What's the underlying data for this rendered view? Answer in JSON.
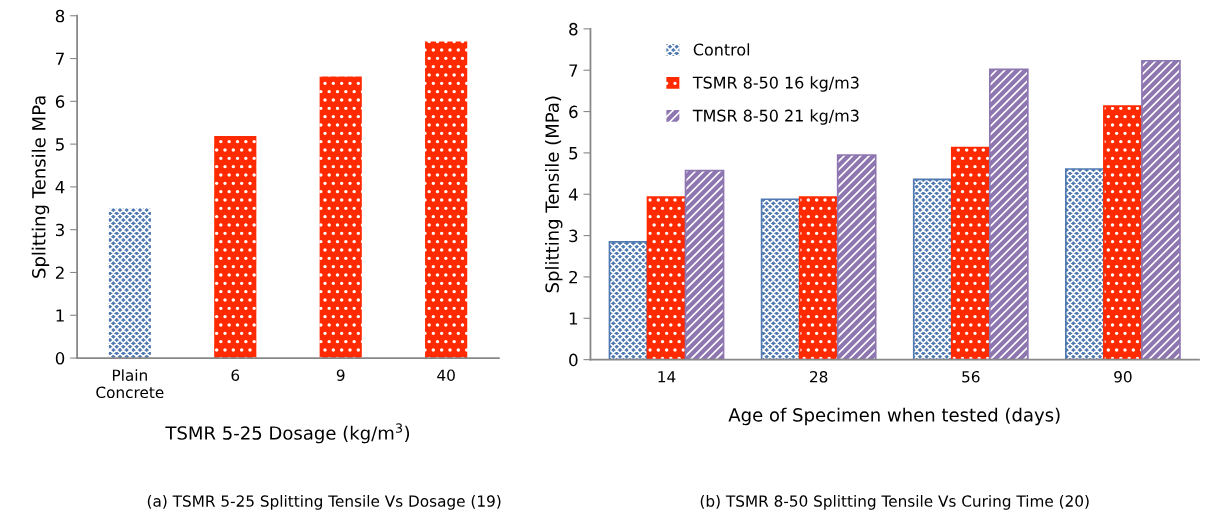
{
  "chart_data": [
    {
      "type": "bar",
      "xlabel": "TSMR 5-25 Dosage (kg/m$^{3}$)",
      "ylabel": "Splitting Tensile MPa",
      "categories": [
        "Plain\nConcrete",
        "6",
        "9",
        "40"
      ],
      "values": [
        3.5,
        5.19,
        6.58,
        7.4
      ],
      "colors": [
        "#4f79b0",
        "#ff2a00",
        "#ff2a00",
        "#ff2a00"
      ],
      "ylim": [
        0,
        8
      ],
      "yticks": [
        0,
        1,
        2,
        3,
        4,
        5,
        6,
        7,
        8
      ],
      "grid": false,
      "legend": false,
      "annotations": [
        "(a) TSMR 5-25 Splitting Tensile Vs Dosage (19)"
      ]
    },
    {
      "type": "bar",
      "xlabel": "Age of Specimen when tested (days)",
      "ylabel": "Splitting Tensile (MPa)",
      "categories": [
        "14",
        "28",
        "56",
        "90"
      ],
      "series": [
        {
          "name": "Control",
          "color": "#4f79b0",
          "values": [
            2.85,
            3.88,
            4.36,
            4.61
          ]
        },
        {
          "name": "TSMR 8-50 16 kg/m3",
          "color": "#ff2a00",
          "values": [
            3.93,
            3.93,
            5.13,
            6.13
          ]
        },
        {
          "name": "TMSR 8-50 21 kg/m3",
          "color": "#8e76b0",
          "values": [
            4.57,
            4.95,
            7.02,
            7.23
          ]
        }
      ],
      "ylim": [
        0,
        8
      ],
      "yticks": [
        0,
        1,
        2,
        3,
        4,
        5,
        6,
        7,
        8
      ],
      "grid": false,
      "legend": "top left",
      "annotations": [
        "(b) TSMR 8-50 Splitting Tensile Vs Curing Time (20)"
      ]
    }
  ]
}
